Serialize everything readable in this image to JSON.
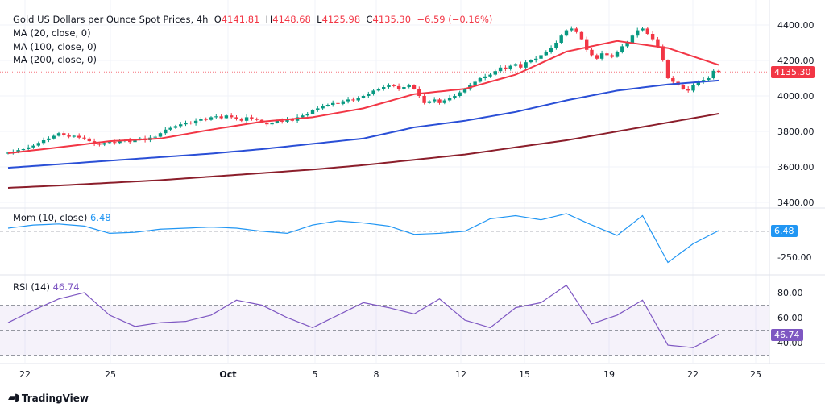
{
  "header": {
    "symbol": "Gold US Dollars per Ounce Spot Prices, 4h",
    "open_label": "O",
    "open": "4141.81",
    "high_label": "H",
    "high": "4148.68",
    "low_label": "L",
    "low": "4125.98",
    "close_label": "C",
    "close": "4135.30",
    "change": "−6.59 (−0.16%)"
  },
  "indicators": {
    "ma20": "MA (20, close, 0)",
    "ma100": "MA (100, close, 0)",
    "ma200": "MA (200, close, 0)",
    "mom": "Mom (10, close)",
    "mom_value": "6.48",
    "rsi": "RSI (14)",
    "rsi_value": "46.74"
  },
  "price_axis": [
    "4400.00",
    "4200.00",
    "4000.00",
    "3800.00",
    "3600.00",
    "3400.00"
  ],
  "mom_axis": [
    "-250.00"
  ],
  "rsi_axis": [
    "80.00",
    "60.00",
    "40.00"
  ],
  "last_price_tag": "4135.30",
  "x_axis": [
    "22",
    "25",
    "Oct",
    "5",
    "8",
    "12",
    "15",
    "19",
    "22",
    "25"
  ],
  "branding": "TradingView",
  "colors": {
    "up": "#089981",
    "down": "#f23645",
    "ma20": "#f23645",
    "ma100": "#2a4fd6",
    "ma200": "#8b1e2b",
    "mom": "#2196f3",
    "rsi": "#7e57c2"
  },
  "chart_data": {
    "type": "candlestick",
    "closes": [
      3680,
      3685,
      3695,
      3700,
      3710,
      3720,
      3735,
      3750,
      3760,
      3775,
      3790,
      3780,
      3770,
      3775,
      3765,
      3760,
      3745,
      3730,
      3725,
      3735,
      3740,
      3735,
      3745,
      3750,
      3740,
      3755,
      3760,
      3750,
      3765,
      3770,
      3790,
      3810,
      3820,
      3830,
      3840,
      3850,
      3845,
      3860,
      3870,
      3865,
      3880,
      3885,
      3875,
      3890,
      3880,
      3870,
      3860,
      3880,
      3870,
      3865,
      3850,
      3840,
      3850,
      3860,
      3855,
      3870,
      3860,
      3880,
      3890,
      3900,
      3920,
      3930,
      3945,
      3950,
      3960,
      3955,
      3970,
      3980,
      3975,
      3990,
      4000,
      4010,
      4030,
      4040,
      4050,
      4060,
      4055,
      4040,
      4050,
      4060,
      4040,
      4000,
      3960,
      3970,
      3980,
      3960,
      3975,
      3990,
      4000,
      4020,
      4040,
      4060,
      4080,
      4100,
      4110,
      4120,
      4140,
      4160,
      4150,
      4170,
      4180,
      4160,
      4190,
      4200,
      4210,
      4230,
      4250,
      4270,
      4300,
      4340,
      4370,
      4380,
      4360,
      4320,
      4260,
      4230,
      4210,
      4240,
      4230,
      4220,
      4250,
      4280,
      4300,
      4340,
      4370,
      4380,
      4350,
      4320,
      4280,
      4200,
      4100,
      4080,
      4060,
      4040,
      4030,
      4060,
      4080,
      4090,
      4100,
      4141.81,
      4135.3
    ],
    "ma20_every10": [
      3677,
      3710,
      3745,
      3760,
      3810,
      3855,
      3880,
      3930,
      4010,
      4040,
      4120,
      4250,
      4310,
      4270,
      4175
    ],
    "ma100_every10": [
      3595,
      3615,
      3635,
      3655,
      3675,
      3700,
      3730,
      3760,
      3823,
      3860,
      3910,
      3975,
      4030,
      4065,
      4087
    ],
    "ma200_every10": [
      3482,
      3495,
      3510,
      3525,
      3545,
      3565,
      3585,
      3610,
      3640,
      3670,
      3710,
      3750,
      3800,
      3850,
      3900
    ],
    "mom_every5": [
      30,
      60,
      70,
      50,
      -20,
      -10,
      20,
      30,
      40,
      30,
      0,
      -20,
      60,
      100,
      80,
      50,
      -30,
      -20,
      0,
      120,
      150,
      110,
      170,
      60,
      -40,
      150,
      -300,
      -120,
      6.48
    ],
    "rsi_every5": [
      56,
      66,
      75,
      80,
      62,
      53,
      56,
      57,
      62,
      74,
      70,
      60,
      52,
      62,
      72,
      68,
      63,
      75,
      58,
      52,
      68,
      72,
      86,
      55,
      62,
      74,
      38,
      36,
      46.74
    ],
    "price_range": [
      3400,
      4450
    ],
    "rsi_levels": [
      70,
      50,
      30
    ],
    "grid": true
  }
}
